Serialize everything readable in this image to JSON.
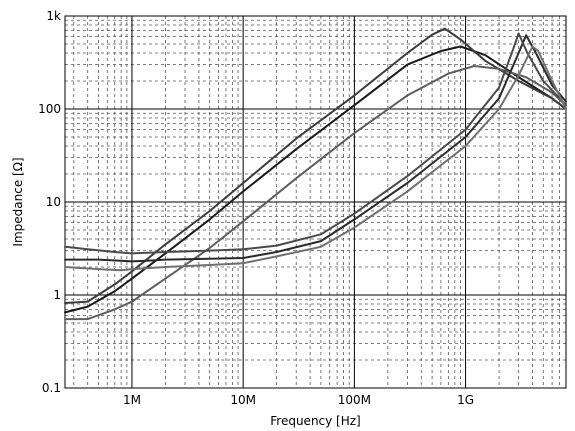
{
  "chart_data": {
    "type": "line",
    "title": "",
    "xlabel": "Frequency [Hz]",
    "ylabel": "Impedance [Ω]",
    "x_scale": "log",
    "y_scale": "log",
    "xlim": [
      250000,
      8000000000
    ],
    "ylim": [
      0.1,
      1000
    ],
    "grid": true,
    "x_tick_labels": [
      {
        "value": 1000000,
        "label": "1M"
      },
      {
        "value": 10000000,
        "label": "10M"
      },
      {
        "value": 100000000,
        "label": "100M"
      },
      {
        "value": 1000000000,
        "label": "1G"
      }
    ],
    "y_tick_labels": [
      {
        "value": 0.1,
        "label": "0.1"
      },
      {
        "value": 1,
        "label": "1"
      },
      {
        "value": 10,
        "label": "10"
      },
      {
        "value": 100,
        "label": "100"
      },
      {
        "value": 1000,
        "label": "1k"
      }
    ],
    "series": [
      {
        "color": "#1a1a1a",
        "points": [
          [
            250000,
            0.65
          ],
          [
            400000,
            0.75
          ],
          [
            700000,
            1.1
          ],
          [
            1000000,
            1.5
          ],
          [
            2000000,
            2.8
          ],
          [
            5000000,
            6.5
          ],
          [
            10000000,
            13
          ],
          [
            30000000,
            37
          ],
          [
            100000000,
            110
          ],
          [
            300000000,
            300
          ],
          [
            600000000,
            420
          ],
          [
            900000000,
            470
          ],
          [
            1500000000,
            380
          ],
          [
            3000000000,
            220
          ],
          [
            6000000000,
            130
          ],
          [
            8000000000,
            100
          ]
        ]
      },
      {
        "color": "#3c3c3c",
        "points": [
          [
            250000,
            0.82
          ],
          [
            400000,
            0.85
          ],
          [
            700000,
            1.3
          ],
          [
            1000000,
            1.8
          ],
          [
            2000000,
            3.5
          ],
          [
            5000000,
            8
          ],
          [
            10000000,
            16
          ],
          [
            30000000,
            48
          ],
          [
            100000000,
            140
          ],
          [
            300000000,
            400
          ],
          [
            500000000,
            630
          ],
          [
            650000000,
            730
          ],
          [
            900000000,
            560
          ],
          [
            1500000000,
            330
          ],
          [
            3000000000,
            200
          ],
          [
            6000000000,
            130
          ],
          [
            8000000000,
            100
          ]
        ]
      },
      {
        "color": "#5e5e5e",
        "points": [
          [
            250000,
            0.55
          ],
          [
            400000,
            0.55
          ],
          [
            700000,
            0.7
          ],
          [
            1000000,
            0.85
          ],
          [
            2000000,
            1.5
          ],
          [
            5000000,
            3.2
          ],
          [
            10000000,
            6.2
          ],
          [
            30000000,
            18
          ],
          [
            100000000,
            55
          ],
          [
            300000000,
            140
          ],
          [
            700000000,
            240
          ],
          [
            1200000000,
            290
          ],
          [
            2000000000,
            270
          ],
          [
            3500000000,
            220
          ],
          [
            6000000000,
            150
          ],
          [
            8000000000,
            110
          ]
        ]
      },
      {
        "color": "#2a2a2a",
        "points": [
          [
            250000,
            2.4
          ],
          [
            500000,
            2.4
          ],
          [
            1000000,
            2.3
          ],
          [
            1500000,
            2.35
          ],
          [
            2000000,
            2.4
          ],
          [
            5000000,
            2.45
          ],
          [
            10000000,
            2.5
          ],
          [
            20000000,
            2.9
          ],
          [
            50000000,
            3.8
          ],
          [
            100000000,
            6.5
          ],
          [
            300000000,
            16
          ],
          [
            1000000000,
            50
          ],
          [
            2000000000,
            130
          ],
          [
            3000000000,
            400
          ],
          [
            3500000000,
            620
          ],
          [
            4200000000,
            420
          ],
          [
            6000000000,
            180
          ],
          [
            8000000000,
            120
          ]
        ]
      },
      {
        "color": "#4a4a4a",
        "points": [
          [
            250000,
            3.3
          ],
          [
            400000,
            3.1
          ],
          [
            700000,
            2.9
          ],
          [
            1000000,
            2.8
          ],
          [
            2000000,
            2.9
          ],
          [
            5000000,
            3.0
          ],
          [
            10000000,
            3.1
          ],
          [
            20000000,
            3.4
          ],
          [
            50000000,
            4.5
          ],
          [
            100000000,
            7.5
          ],
          [
            300000000,
            19
          ],
          [
            1000000000,
            60
          ],
          [
            2000000000,
            170
          ],
          [
            2700000000,
            450
          ],
          [
            3000000000,
            650
          ],
          [
            3600000000,
            400
          ],
          [
            5000000000,
            200
          ],
          [
            8000000000,
            110
          ]
        ]
      },
      {
        "color": "#707070",
        "points": [
          [
            250000,
            2.0
          ],
          [
            500000,
            1.9
          ],
          [
            800000,
            1.85
          ],
          [
            1000000,
            1.9
          ],
          [
            2000000,
            2.0
          ],
          [
            5000000,
            2.1
          ],
          [
            10000000,
            2.2
          ],
          [
            20000000,
            2.6
          ],
          [
            50000000,
            3.3
          ],
          [
            100000000,
            5.3
          ],
          [
            300000000,
            13
          ],
          [
            1000000000,
            40
          ],
          [
            2000000000,
            100
          ],
          [
            3000000000,
            230
          ],
          [
            4000000000,
            470
          ],
          [
            4500000000,
            420
          ],
          [
            6000000000,
            200
          ],
          [
            8000000000,
            100
          ]
        ]
      }
    ]
  }
}
